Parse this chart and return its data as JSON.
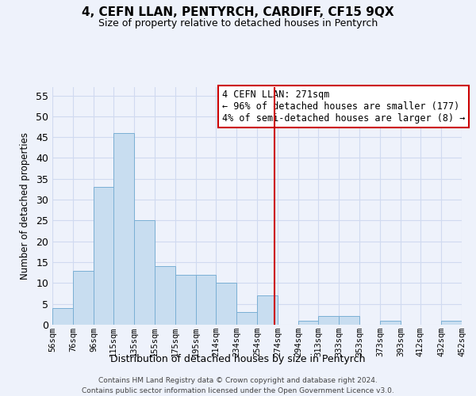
{
  "title": "4, CEFN LLAN, PENTYRCH, CARDIFF, CF15 9QX",
  "subtitle": "Size of property relative to detached houses in Pentyrch",
  "xlabel": "Distribution of detached houses by size in Pentyrch",
  "ylabel": "Number of detached properties",
  "bar_color": "#c8ddf0",
  "bar_edge_color": "#7aafd4",
  "bin_edges": [
    56,
    76,
    96,
    115,
    135,
    155,
    175,
    195,
    214,
    234,
    254,
    274,
    294,
    313,
    333,
    353,
    373,
    393,
    412,
    432,
    452
  ],
  "bin_labels": [
    "56sqm",
    "76sqm",
    "96sqm",
    "115sqm",
    "135sqm",
    "155sqm",
    "175sqm",
    "195sqm",
    "214sqm",
    "234sqm",
    "254sqm",
    "274sqm",
    "294sqm",
    "313sqm",
    "333sqm",
    "353sqm",
    "373sqm",
    "393sqm",
    "412sqm",
    "432sqm",
    "452sqm"
  ],
  "counts": [
    4,
    13,
    33,
    46,
    25,
    14,
    12,
    12,
    10,
    3,
    7,
    0,
    1,
    2,
    2,
    0,
    1,
    0,
    0,
    1
  ],
  "vline_x": 271,
  "vline_color": "#cc0000",
  "annotation_line1": "4 CEFN LLAN: 271sqm",
  "annotation_line2": "← 96% of detached houses are smaller (177)",
  "annotation_line3": "4% of semi-detached houses are larger (8) →",
  "ylim": [
    0,
    57
  ],
  "yticks": [
    0,
    5,
    10,
    15,
    20,
    25,
    30,
    35,
    40,
    45,
    50,
    55
  ],
  "footer_text": "Contains HM Land Registry data © Crown copyright and database right 2024.\nContains public sector information licensed under the Open Government Licence v3.0.",
  "bg_color": "#eef2fb",
  "grid_color": "#d0daf0"
}
